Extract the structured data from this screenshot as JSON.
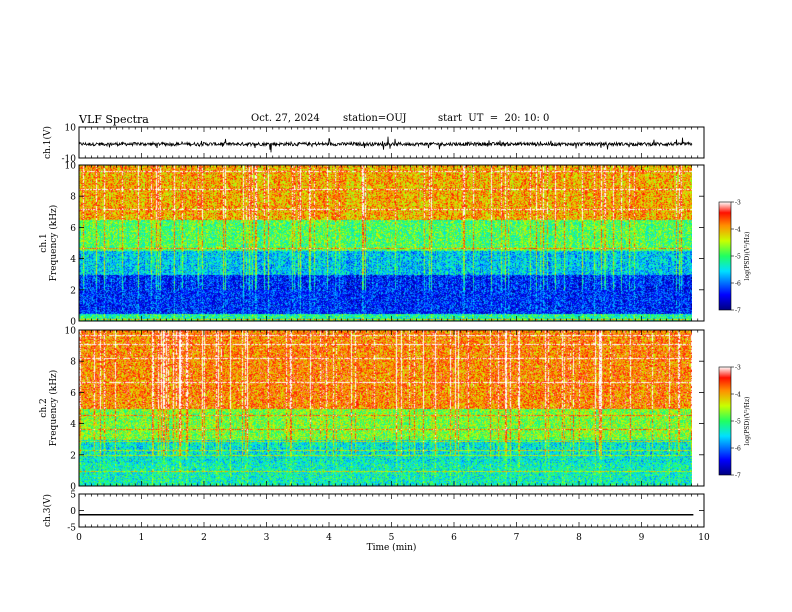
{
  "header": {
    "title": "VLF Spectra",
    "date": "Oct. 27, 2024",
    "station": "station=OUJ",
    "start": "start  UT  =  20: 10: 0"
  },
  "chart_data": [
    {
      "type": "line",
      "panel": "ch1-waveform",
      "ylabel": "ch.1(V)",
      "ylim": [
        -10,
        10
      ],
      "yticks": [
        "10",
        "-10"
      ],
      "x": [
        0,
        1,
        2,
        3,
        4,
        5,
        6,
        7,
        8,
        9,
        9.83
      ],
      "note_series": "noisy waveform centred near -1 V",
      "values": [
        -1,
        -1,
        -1,
        -1,
        -1,
        -1,
        -1,
        -1,
        -1,
        -1,
        -1
      ]
    },
    {
      "type": "heatmap",
      "panel": "ch1-spectrogram",
      "ylabel": "ch.1\nFrequency (kHz)",
      "ylim": [
        0,
        10
      ],
      "yticks": [
        "0",
        "2",
        "4",
        "6",
        "8",
        "10"
      ],
      "xlim": [
        0,
        9.83
      ],
      "colorbar": {
        "label": "log(PSD)(V²/Hz)",
        "range": [
          -7,
          -3
        ],
        "ticks": [
          "-3",
          "-4",
          "-5",
          "-6",
          "-7"
        ]
      },
      "band_levels_by_frequency_kHz": [
        {
          "f": [
            0,
            0.5
          ],
          "level": -5.2
        },
        {
          "f": [
            0.5,
            3
          ],
          "level": -6.3
        },
        {
          "f": [
            3,
            4.5
          ],
          "level": -5.6
        },
        {
          "f": [
            4.5,
            6.5
          ],
          "level": -4.9
        },
        {
          "f": [
            6.5,
            10
          ],
          "level": -4.0
        }
      ]
    },
    {
      "type": "heatmap",
      "panel": "ch2-spectrogram",
      "ylabel": "ch.2\nFrequency (kHz)",
      "ylim": [
        0,
        10
      ],
      "yticks": [
        "0",
        "2",
        "4",
        "6",
        "8",
        "10"
      ],
      "xlim": [
        0,
        9.83
      ],
      "colorbar": {
        "label": "log(PSD)(V²/Hz)",
        "range": [
          -7,
          -3
        ],
        "ticks": [
          "-3",
          "-4",
          "-5",
          "-6",
          "-7"
        ]
      },
      "band_levels_by_frequency_kHz": [
        {
          "f": [
            0,
            1.5
          ],
          "level": -5.3
        },
        {
          "f": [
            1.5,
            3
          ],
          "level": -5.4
        },
        {
          "f": [
            3,
            5
          ],
          "level": -4.7
        },
        {
          "f": [
            5,
            10
          ],
          "level": -3.8
        }
      ]
    },
    {
      "type": "line",
      "panel": "ch3-waveform",
      "ylabel": "ch.3(V)",
      "ylim": [
        -5,
        5
      ],
      "yticks": [
        "5",
        "0",
        "-5"
      ],
      "x": [
        0,
        9.83
      ],
      "values": [
        -1.3,
        -1.3
      ]
    }
  ],
  "xaxis": {
    "label": "Time (min)",
    "ticks": [
      "0",
      "1",
      "2",
      "3",
      "4",
      "5",
      "6",
      "7",
      "8",
      "9",
      "10"
    ],
    "range": [
      0,
      10
    ]
  }
}
